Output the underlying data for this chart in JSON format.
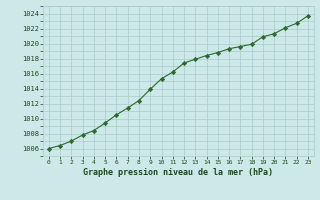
{
  "x": [
    0,
    1,
    2,
    3,
    4,
    5,
    6,
    7,
    8,
    9,
    10,
    11,
    12,
    13,
    14,
    15,
    16,
    17,
    18,
    19,
    20,
    21,
    22,
    23
  ],
  "y": [
    1006.0,
    1006.4,
    1007.0,
    1007.8,
    1008.4,
    1009.4,
    1010.5,
    1011.4,
    1012.4,
    1013.9,
    1015.3,
    1016.2,
    1017.4,
    1017.9,
    1018.4,
    1018.8,
    1019.3,
    1019.6,
    1019.9,
    1020.9,
    1021.3,
    1022.1,
    1022.7,
    1023.7
  ],
  "line_color": "#2d6a2d",
  "marker": "D",
  "marker_size": 2.2,
  "bg_color": "#cce8e8",
  "grid_color": "#aacccc",
  "xlabel": "Graphe pression niveau de la mer (hPa)",
  "xlabel_color": "#1a4a1a",
  "tick_label_color": "#1a4a1a",
  "ylim_min": 1005,
  "ylim_max": 1025,
  "ytick_step": 2,
  "xlim_min": -0.5,
  "xlim_max": 23.5,
  "figure_bg": "#cce8e8",
  "yticks": [
    1006,
    1008,
    1010,
    1012,
    1014,
    1016,
    1018,
    1020,
    1022,
    1024
  ]
}
